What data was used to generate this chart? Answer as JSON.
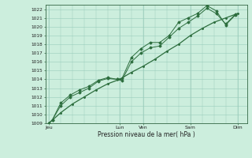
{
  "title": "",
  "xlabel": "Pression niveau de la mer( hPa )",
  "bg_color": "#cceedd",
  "grid_color": "#99ccbb",
  "line_color": "#2d6e3e",
  "ylim": [
    1009,
    1022.5
  ],
  "yticks": [
    1009,
    1010,
    1011,
    1012,
    1013,
    1014,
    1015,
    1016,
    1017,
    1018,
    1019,
    1020,
    1021,
    1022
  ],
  "day_labels": [
    "Jeu",
    "Lun",
    "Ven",
    "Sam",
    "Dim"
  ],
  "day_positions": [
    0,
    3.0,
    4.0,
    6.0,
    8.0
  ],
  "xlim": [
    -0.15,
    8.4
  ],
  "series1_x": [
    0.0,
    0.15,
    0.5,
    0.9,
    1.3,
    1.7,
    2.1,
    2.5,
    2.9,
    3.1,
    3.5,
    3.9,
    4.3,
    4.7,
    5.1,
    5.5,
    5.9,
    6.3,
    6.7,
    7.1,
    7.5,
    7.9
  ],
  "series1_y": [
    1009.0,
    1009.4,
    1011.0,
    1012.0,
    1012.5,
    1013.0,
    1013.8,
    1014.1,
    1014.0,
    1014.1,
    1016.5,
    1017.5,
    1018.2,
    1018.2,
    1019.0,
    1020.5,
    1021.0,
    1021.5,
    1022.4,
    1021.8,
    1020.2,
    1021.3
  ],
  "series2_x": [
    0.0,
    0.15,
    0.5,
    0.9,
    1.3,
    1.7,
    2.1,
    2.5,
    2.9,
    3.1,
    3.5,
    3.9,
    4.3,
    4.7,
    5.1,
    5.5,
    5.9,
    6.3,
    6.7,
    7.1,
    7.5,
    7.9
  ],
  "series2_y": [
    1009.0,
    1009.4,
    1011.3,
    1012.2,
    1012.8,
    1013.2,
    1013.9,
    1014.2,
    1014.0,
    1013.9,
    1016.0,
    1017.0,
    1017.6,
    1017.8,
    1018.8,
    1019.8,
    1020.5,
    1021.2,
    1022.1,
    1021.5,
    1020.3,
    1021.4
  ],
  "series3_x": [
    0.0,
    0.5,
    1.0,
    1.5,
    2.0,
    2.5,
    3.0,
    3.5,
    4.0,
    4.5,
    5.0,
    5.5,
    6.0,
    6.5,
    7.0,
    7.5,
    8.0
  ],
  "series3_y": [
    1009.0,
    1010.2,
    1011.2,
    1012.0,
    1012.8,
    1013.5,
    1014.0,
    1014.8,
    1015.5,
    1016.3,
    1017.2,
    1018.0,
    1019.0,
    1019.8,
    1020.5,
    1021.0,
    1021.5
  ]
}
